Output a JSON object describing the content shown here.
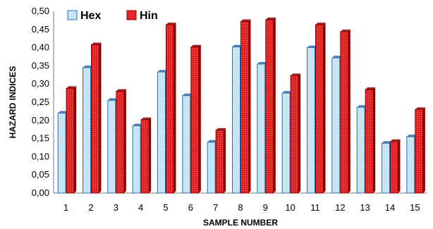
{
  "chart_data": {
    "type": "bar",
    "xlabel": "SAMPLE NUMBER",
    "ylabel": "HAZARD INDICES",
    "ylim": [
      0,
      0.5
    ],
    "yticks": [
      "0,00",
      "0,05",
      "0,10",
      "0,15",
      "0,20",
      "0,25",
      "0,30",
      "0,35",
      "0,40",
      "0,45",
      "0,50"
    ],
    "categories": [
      "1",
      "2",
      "3",
      "4",
      "5",
      "6",
      "7",
      "8",
      "9",
      "10",
      "11",
      "12",
      "13",
      "14",
      "15"
    ],
    "series": [
      {
        "name": "Hex",
        "color": "#bfe3f2",
        "edge": "#2f6db0",
        "values": [
          0.22,
          0.345,
          0.255,
          0.185,
          0.333,
          0.268,
          0.14,
          0.402,
          0.355,
          0.275,
          0.4,
          0.372,
          0.236,
          0.137,
          0.155
        ]
      },
      {
        "name": "Hin",
        "color": "#e02020",
        "edge": "#8a0000",
        "values": [
          0.288,
          0.408,
          0.28,
          0.202,
          0.463,
          0.402,
          0.173,
          0.472,
          0.477,
          0.323,
          0.463,
          0.444,
          0.285,
          0.142,
          0.23
        ]
      }
    ],
    "grid": false,
    "legend": "top-left"
  }
}
